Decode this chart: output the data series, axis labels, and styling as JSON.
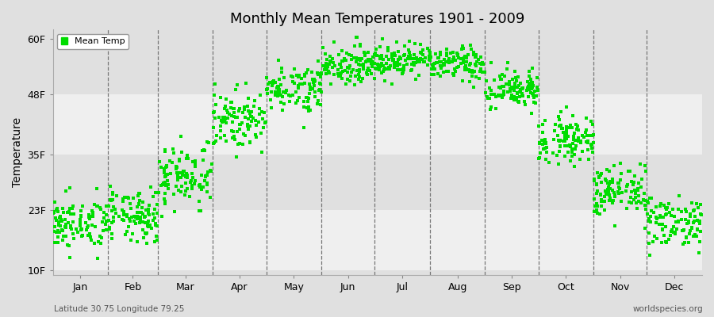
{
  "title": "Monthly Mean Temperatures 1901 - 2009",
  "ylabel": "Temperature",
  "ytick_labels": [
    "10F",
    "23F",
    "35F",
    "48F",
    "60F"
  ],
  "ytick_values": [
    10,
    23,
    35,
    48,
    60
  ],
  "ylim": [
    9,
    62
  ],
  "month_labels": [
    "Jan",
    "Feb",
    "Mar",
    "Apr",
    "May",
    "Jun",
    "Jul",
    "Aug",
    "Sep",
    "Oct",
    "Nov",
    "Dec"
  ],
  "legend_label": "Mean Temp",
  "dot_color": "#00dd00",
  "dot_size": 6,
  "bg_color": "#e0e0e0",
  "band_color": "#efefef",
  "footer_left": "Latitude 30.75 Longitude 79.25",
  "footer_right": "worldspecies.org",
  "n_years": 109,
  "monthly_mean_F": [
    20.0,
    21.5,
    30.5,
    42.5,
    49.5,
    54.5,
    55.5,
    54.5,
    49.0,
    38.5,
    27.0,
    20.5
  ],
  "monthly_std_F": [
    2.8,
    2.8,
    3.5,
    3.0,
    2.5,
    2.0,
    1.8,
    1.8,
    2.2,
    2.5,
    2.8,
    2.8
  ],
  "random_seed": 42,
  "days_in_month": [
    31,
    28,
    31,
    30,
    31,
    30,
    31,
    31,
    30,
    31,
    30,
    31
  ],
  "total_days": 365
}
